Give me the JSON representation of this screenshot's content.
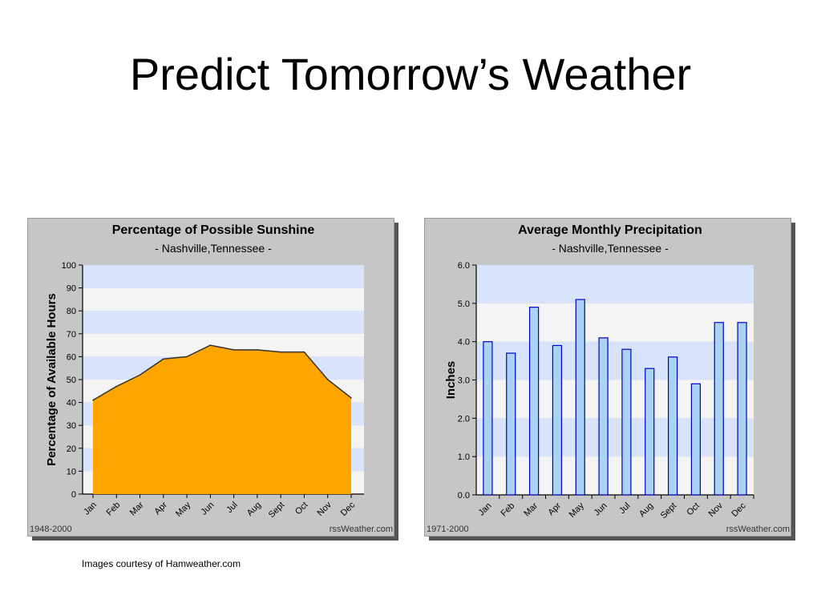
{
  "slide": {
    "title": "Predict Tomorrow’s Weather",
    "credit": "Images courtesy of Hamweather.com"
  },
  "chart_data": [
    {
      "type": "area",
      "title": "Percentage of Possible Sunshine",
      "subtitle": "- Nashville,Tennessee -",
      "xlabel": "",
      "ylabel": "Percentage of Available Hours",
      "categories": [
        "Jan",
        "Feb",
        "Mar",
        "Apr",
        "May",
        "Jun",
        "Jul",
        "Aug",
        "Sept",
        "Oct",
        "Nov",
        "Dec"
      ],
      "series": [
        {
          "values": [
            41,
            47,
            52,
            59,
            60,
            65,
            63,
            63,
            62,
            62,
            50,
            42
          ]
        }
      ],
      "ylim": [
        0,
        100
      ],
      "yticks": [
        "0",
        "10",
        "20",
        "30",
        "40",
        "50",
        "60",
        "70",
        "80",
        "90",
        "100"
      ],
      "grid": true,
      "footer_left": "1948-2000",
      "footer_right": "rssWeather.com",
      "colors": {
        "fill": "#ffa500",
        "line": "#333333",
        "band_a": "#d8e4fb",
        "band_b": "#f4f4f4",
        "frame": "#c6c6c6"
      }
    },
    {
      "type": "bar",
      "title": "Average Monthly Precipitation",
      "subtitle": "- Nashville,Tennessee -",
      "xlabel": "",
      "ylabel": "Inches",
      "categories": [
        "Jan",
        "Feb",
        "Mar",
        "Apr",
        "May",
        "Jun",
        "Jul",
        "Aug",
        "Sept",
        "Oct",
        "Nov",
        "Dec"
      ],
      "series": [
        {
          "values": [
            4.0,
            3.7,
            4.9,
            3.9,
            5.1,
            4.1,
            3.8,
            3.3,
            3.6,
            2.9,
            4.5,
            4.5
          ]
        }
      ],
      "ylim": [
        0,
        6
      ],
      "yticks": [
        "0.0",
        "1.0",
        "2.0",
        "3.0",
        "4.0",
        "5.0",
        "6.0"
      ],
      "grid": true,
      "footer_left": "1971-2000",
      "footer_right": "rssWeather.com",
      "colors": {
        "fill": "#a9d3f0",
        "line": "#0000cc",
        "band_a": "#d8e4fb",
        "band_b": "#f4f4f4",
        "frame": "#c6c6c6"
      }
    }
  ]
}
